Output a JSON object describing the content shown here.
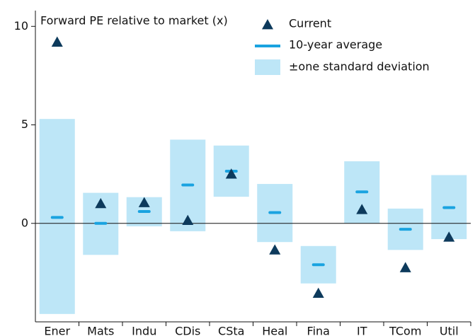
{
  "chart_data": {
    "type": "range",
    "title": "Forward PE relative to market (x)",
    "categories": [
      "Ener",
      "Mats",
      "Indu",
      "CDis",
      "CSta",
      "Heal",
      "Fina",
      "IT",
      "TCom",
      "Util"
    ],
    "series": [
      {
        "name": "Current",
        "color": "#0d3a5c",
        "values": [
          9.2,
          1.0,
          1.05,
          0.15,
          2.5,
          -1.35,
          -3.55,
          0.7,
          -2.25,
          -0.7
        ]
      },
      {
        "name": "10-year average",
        "color": "#1aa3e0",
        "values": [
          0.3,
          0,
          0.6,
          1.95,
          2.65,
          0.55,
          -2.1,
          1.6,
          -0.3,
          0.8
        ]
      },
      {
        "name": "±one standard deviation",
        "color": "#bde6f7",
        "low": [
          -4.6,
          -1.6,
          -0.15,
          -0.4,
          1.35,
          -0.95,
          -3.05,
          0,
          -1.35,
          -0.8
        ],
        "high": [
          5.3,
          1.55,
          1.33,
          4.25,
          3.95,
          2.0,
          -1.15,
          3.15,
          0.75,
          2.45
        ]
      }
    ],
    "ylim": [
      -5,
      10.8
    ],
    "yticks": [
      0,
      5,
      10
    ]
  }
}
